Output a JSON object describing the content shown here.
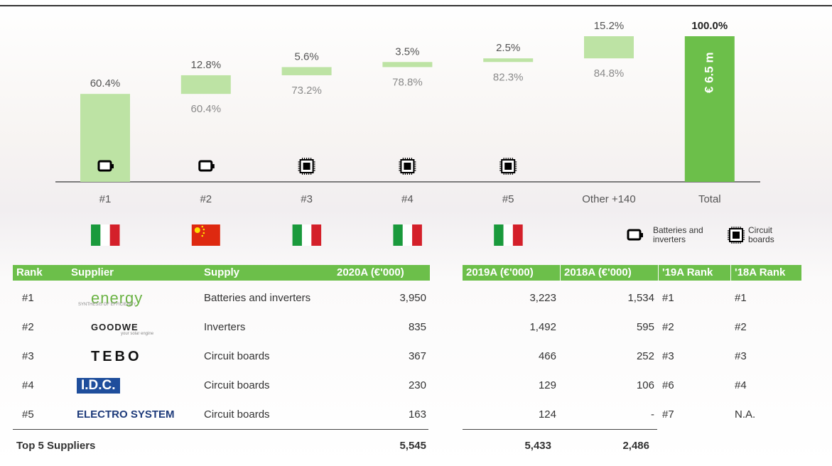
{
  "chart_data": {
    "type": "waterfall",
    "categories": [
      "#1",
      "#2",
      "#3",
      "#4",
      "#5",
      "Other +140",
      "Total"
    ],
    "values": [
      60.4,
      12.8,
      5.6,
      3.5,
      2.5,
      15.2,
      100.0
    ],
    "value_labels": [
      "60.4%",
      "12.8%",
      "5.6%",
      "3.5%",
      "2.5%",
      "15.2%",
      "100.0%"
    ],
    "base_labels": [
      null,
      "60.4%",
      "73.2%",
      "78.8%",
      "82.3%",
      "84.8%",
      null
    ],
    "total_label": "€ 6.5 m",
    "ylim": [
      0,
      100
    ],
    "color": "#bde3a4",
    "total_color": "#6cbf4a",
    "legend": [
      "Batteries and inverters",
      "Circuit boards"
    ]
  },
  "table": {
    "header": [
      "Rank",
      "Supplier",
      "Supply",
      "2020A (€'000)",
      "2019A (€'000)",
      "2018A (€'000)",
      "'19A Rank",
      "'18A Rank"
    ],
    "rows": [
      {
        "rank": "#1",
        "supplier": "energy",
        "tagline": "SYNTHESIS OF EFFICIENCY",
        "supply": "Batteries and inverters",
        "v2020": "3,950",
        "v2019": "3,223",
        "v2018": "1,534",
        "rank19": "#1",
        "rank18": "#1"
      },
      {
        "rank": "#2",
        "supplier": "GOODWE",
        "tagline": "your solar engine",
        "supply": "Inverters",
        "v2020": "835",
        "v2019": "1,492",
        "v2018": "595",
        "rank19": "#2",
        "rank18": "#2"
      },
      {
        "rank": "#3",
        "supplier": "TEBO",
        "supply": "Circuit boards",
        "v2020": "367",
        "v2019": "466",
        "v2018": "252",
        "rank19": "#3",
        "rank18": "#3"
      },
      {
        "rank": "#4",
        "supplier": "I.D.C.",
        "supply": "Circuit boards",
        "v2020": "230",
        "v2019": "129",
        "v2018": "106",
        "rank19": "#6",
        "rank18": "#4"
      },
      {
        "rank": "#5",
        "supplier": "ELECTRO SYSTEM",
        "supply": "Circuit boards",
        "v2020": "163",
        "v2019": "124",
        "v2018": "-",
        "rank19": "#7",
        "rank18": "N.A."
      }
    ],
    "total": {
      "label": "Top 5 Suppliers",
      "v2020": "5,545",
      "v2019": "5,433",
      "v2018": "2,486"
    }
  }
}
